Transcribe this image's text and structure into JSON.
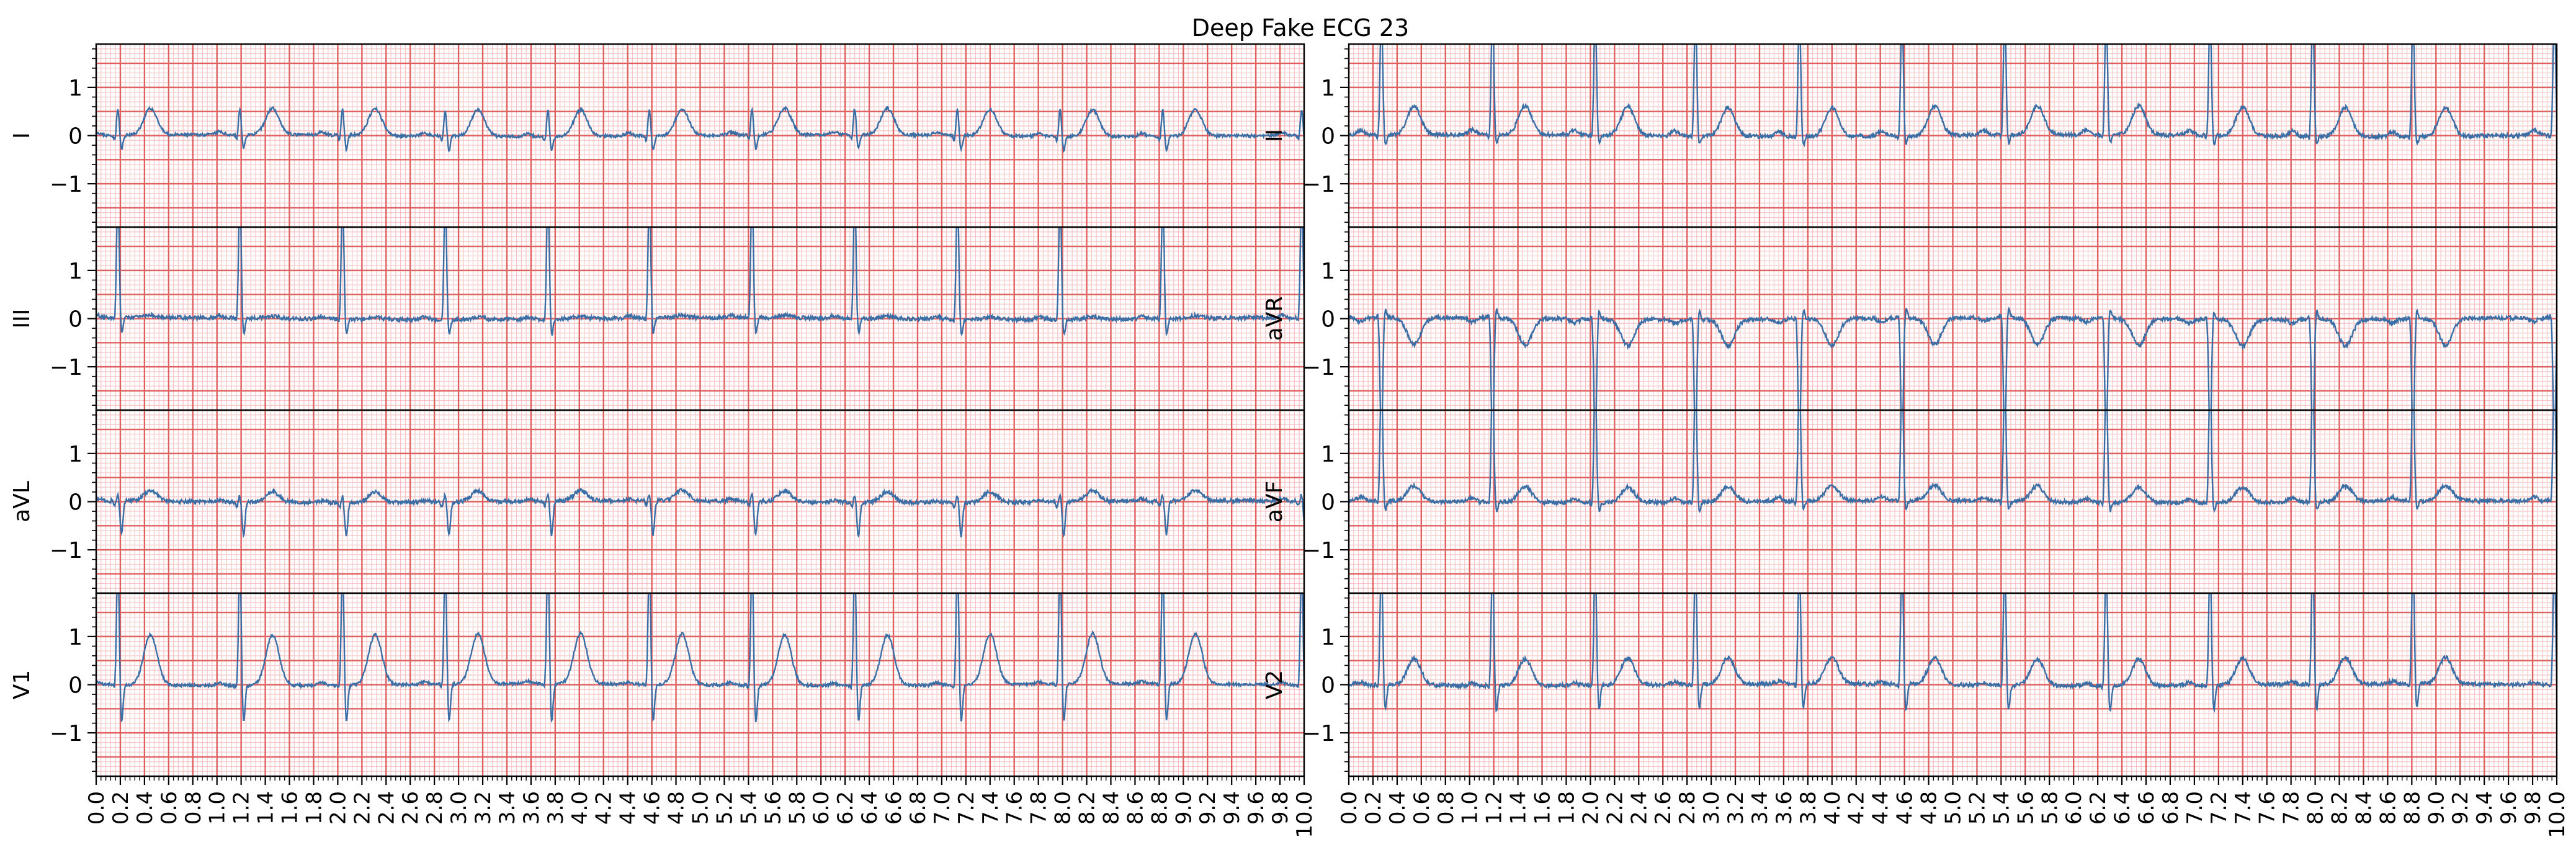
{
  "title": "Deep Fake ECG 23",
  "colors": {
    "trace": "#3b6ea5",
    "grid_major": "#e06060",
    "grid_minor": "#f6c4c4",
    "frame": "#000000"
  },
  "chart_data": {
    "type": "line",
    "title": "Deep Fake ECG 23",
    "xlim": [
      0,
      10
    ],
    "ylim": [
      -1.9,
      1.9
    ],
    "x_ticks": [
      "0.0",
      "0.2",
      "0.4",
      "0.6",
      "0.8",
      "1.0",
      "1.2",
      "1.4",
      "1.6",
      "1.8",
      "2.0",
      "2.2",
      "2.4",
      "2.6",
      "2.8",
      "3.0",
      "3.2",
      "3.4",
      "3.6",
      "3.8",
      "4.0",
      "4.2",
      "4.4",
      "4.6",
      "4.8",
      "5.0",
      "5.2",
      "5.4",
      "5.6",
      "5.8",
      "6.0",
      "6.2",
      "6.4",
      "6.6",
      "6.8",
      "7.0",
      "7.2",
      "7.4",
      "7.6",
      "7.8",
      "8.0",
      "8.2",
      "8.4",
      "8.6",
      "8.8",
      "9.0",
      "9.2",
      "9.4",
      "9.6",
      "9.8",
      "10.0"
    ],
    "y_ticks": [
      "−1",
      "0",
      "1"
    ],
    "y_tick_values": [
      -1,
      0,
      1
    ],
    "grid": true,
    "leads": [
      {
        "name": "I",
        "column": 0,
        "row": 0,
        "r_peak": 0.55,
        "s_depth": -0.3,
        "t_wave": 0.55,
        "p_wave": 0.06,
        "noise": 0.03
      },
      {
        "name": "III",
        "column": 0,
        "row": 1,
        "r_peak": 2.6,
        "s_depth": -0.35,
        "t_wave": 0.05,
        "p_wave": 0.05,
        "noise": 0.04
      },
      {
        "name": "aVL",
        "column": 0,
        "row": 2,
        "r_peak": 0.15,
        "s_depth": -0.7,
        "t_wave": 0.22,
        "p_wave": 0.04,
        "noise": 0.04
      },
      {
        "name": "V1",
        "column": 0,
        "row": 3,
        "r_peak": 2.6,
        "s_depth": -0.8,
        "t_wave": 1.05,
        "p_wave": 0.05,
        "noise": 0.03
      },
      {
        "name": "II",
        "column": 1,
        "row": 0,
        "r_peak": 2.6,
        "s_depth": -0.2,
        "t_wave": 0.6,
        "p_wave": 0.1,
        "noise": 0.04
      },
      {
        "name": "aVR",
        "column": 1,
        "row": 1,
        "r_peak": -2.6,
        "s_depth": 0.2,
        "t_wave": -0.55,
        "p_wave": -0.08,
        "noise": 0.04
      },
      {
        "name": "aVF",
        "column": 1,
        "row": 2,
        "r_peak": 2.6,
        "s_depth": -0.2,
        "t_wave": 0.32,
        "p_wave": 0.08,
        "noise": 0.04
      },
      {
        "name": "V2",
        "column": 1,
        "row": 3,
        "r_peak": 2.6,
        "s_depth": -0.55,
        "t_wave": 0.55,
        "p_wave": 0.05,
        "noise": 0.04
      }
    ],
    "beat_times_left": [
      0.18,
      1.19,
      2.04,
      2.89,
      3.74,
      4.58,
      5.43,
      6.28,
      7.13,
      7.98,
      8.83,
      9.98
    ],
    "beat_times_right": [
      0.27,
      1.19,
      2.04,
      2.87,
      3.73,
      4.58,
      5.43,
      6.27,
      7.13,
      7.98,
      8.81,
      9.98
    ]
  }
}
